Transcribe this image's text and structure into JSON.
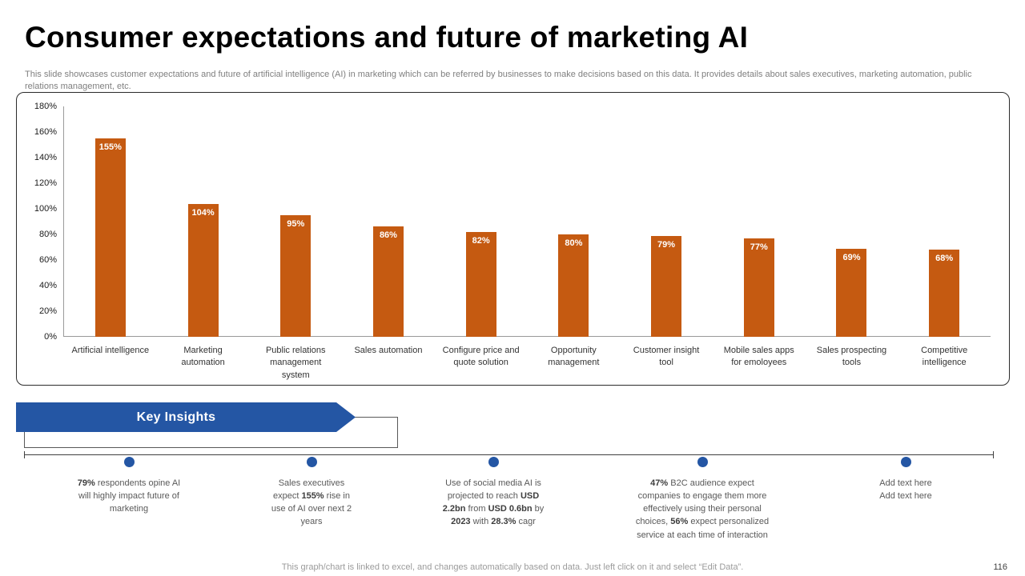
{
  "slide": {
    "title": "Consumer expectations and future of marketing AI",
    "subtitle": "This slide showcases customer expectations and future of artificial intelligence (AI) in marketing which can be referred by businesses to make decisions based on this data. It provides details about sales executives, marketing automation, public relations management, etc.",
    "footer": "This graph/chart is linked to excel,  and changes automatically based on data. Just left click on it and select “Edit Data”.",
    "page_number": "116"
  },
  "chart_data": {
    "type": "bar",
    "title": "",
    "xlabel": "",
    "ylabel": "",
    "categories": [
      "Artificial intelligence",
      "Marketing automation",
      "Public relations management system",
      "Sales automation",
      "Configure price and quote solution",
      "Opportunity management",
      "Customer insight tool",
      "Mobile sales apps for emoloyees",
      "Sales prospecting tools",
      "Competitive intelligence"
    ],
    "values": [
      155,
      104,
      95,
      86,
      82,
      80,
      79,
      77,
      69,
      68
    ],
    "value_labels": [
      "155%",
      "104%",
      "95%",
      "86%",
      "82%",
      "80%",
      "79%",
      "77%",
      "69%",
      "68%"
    ],
    "ylim": [
      0,
      180
    ],
    "ytick_step": 20,
    "ytick_suffix": "%",
    "bar_color": "#C55A11",
    "grid": false,
    "legend": false
  },
  "key_insights": {
    "banner_label": "Key Insights",
    "accent_color": "#2456A4",
    "items": [
      {
        "segments": [
          {
            "t": "79%",
            "b": true
          },
          {
            "t": " respondents opine AI will highly impact future of marketing",
            "b": false
          }
        ]
      },
      {
        "segments": [
          {
            "t": "Sales executives expect ",
            "b": false
          },
          {
            "t": "155%",
            "b": true
          },
          {
            "t": " rise in use of AI over next 2 years",
            "b": false
          }
        ]
      },
      {
        "segments": [
          {
            "t": "Use of social media AI is projected to reach ",
            "b": false
          },
          {
            "t": "USD 2.2bn",
            "b": true
          },
          {
            "t": " from ",
            "b": false
          },
          {
            "t": "USD 0.6bn",
            "b": true
          },
          {
            "t": " by ",
            "b": false
          },
          {
            "t": "2023",
            "b": true
          },
          {
            "t": " with ",
            "b": false
          },
          {
            "t": "28.3%",
            "b": true
          },
          {
            "t": " cagr",
            "b": false
          }
        ]
      },
      {
        "segments": [
          {
            "t": "47%",
            "b": true
          },
          {
            "t": " B2C audience expect companies to engage them more effectively using their personal choices, ",
            "b": false
          },
          {
            "t": "56%",
            "b": true
          },
          {
            "t": " expect personalized service at each time of interaction",
            "b": false
          }
        ]
      },
      {
        "segments": [
          {
            "t": "Add text here\nAdd text here",
            "b": false
          }
        ]
      }
    ]
  }
}
